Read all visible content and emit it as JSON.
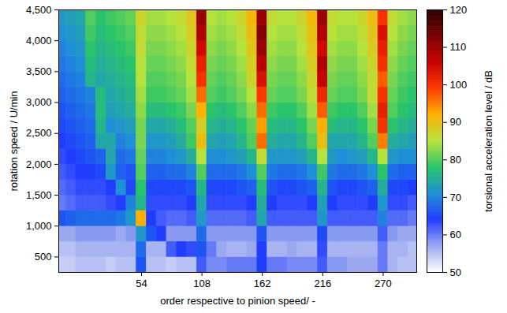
{
  "chart_data": {
    "type": "heatmap",
    "xlabel": "order respective to pinion speed/ -",
    "ylabel": "rotation speed / U/min",
    "xlim": [
      -20,
      300
    ],
    "ylim": [
      250,
      4500
    ],
    "xticks": [
      54,
      108,
      162,
      216,
      270
    ],
    "yticks": [
      500,
      1000,
      1500,
      2000,
      2500,
      3000,
      3500,
      4000,
      4500
    ],
    "x_bins": [
      -22.5,
      -13.5,
      -4.5,
      4.5,
      13.5,
      22.5,
      31.5,
      40.5,
      49.5,
      58.5,
      67.5,
      76.5,
      85.5,
      94.5,
      103.5,
      112.5,
      121.5,
      130.5,
      139.5,
      148.5,
      157.5,
      166.5,
      175.5,
      184.5,
      193.5,
      202.5,
      211.5,
      220.5,
      229.5,
      238.5,
      247.5,
      256.5,
      265.5,
      274.5,
      283.5,
      292.5,
      301.5
    ],
    "y_bins": [
      250,
      500,
      750,
      1000,
      1250,
      1500,
      1750,
      2000,
      2250,
      2500,
      2750,
      3000,
      3250,
      3500,
      3750,
      4000,
      4250,
      4500
    ],
    "values": [
      [
        54,
        54,
        55,
        55,
        55,
        54,
        55,
        55,
        66,
        55,
        55,
        54,
        55,
        55,
        62,
        59,
        59,
        60,
        60,
        60,
        64,
        60,
        60,
        59,
        59,
        59,
        62,
        58,
        58,
        57,
        57,
        57,
        60,
        56,
        55,
        55
      ],
      [
        55,
        55,
        56,
        56,
        56,
        56,
        56,
        56,
        68,
        56,
        56,
        62,
        64,
        63,
        66,
        60,
        57,
        56,
        56,
        57,
        64,
        56,
        56,
        57,
        56,
        56,
        63,
        56,
        56,
        56,
        56,
        56,
        60,
        56,
        56,
        55
      ],
      [
        57,
        57,
        58,
        58,
        58,
        58,
        57,
        58,
        72,
        66,
        64,
        58,
        58,
        58,
        68,
        58,
        58,
        58,
        58,
        58,
        66,
        58,
        58,
        58,
        58,
        58,
        65,
        58,
        58,
        58,
        58,
        58,
        62,
        58,
        57,
        57
      ],
      [
        66,
        67,
        68,
        68,
        68,
        68,
        69,
        72,
        92,
        64,
        62,
        61,
        61,
        62,
        72,
        61,
        61,
        61,
        61,
        62,
        74,
        62,
        62,
        62,
        62,
        62,
        72,
        62,
        62,
        62,
        62,
        62,
        70,
        61,
        61,
        60
      ],
      [
        60,
        61,
        62,
        62,
        62,
        63,
        64,
        70,
        76,
        63,
        63,
        63,
        63,
        64,
        74,
        63,
        63,
        63,
        63,
        64,
        75,
        64,
        63,
        63,
        63,
        64,
        73,
        64,
        63,
        63,
        63,
        64,
        72,
        63,
        63,
        62
      ],
      [
        61,
        62,
        63,
        63,
        63,
        64,
        71,
        65,
        78,
        65,
        65,
        65,
        65,
        66,
        76,
        65,
        65,
        65,
        66,
        67,
        77,
        66,
        65,
        65,
        66,
        67,
        76,
        66,
        65,
        65,
        66,
        67,
        75,
        65,
        65,
        64
      ],
      [
        62,
        63,
        64,
        64,
        65,
        72,
        67,
        66,
        80,
        67,
        67,
        68,
        68,
        70,
        80,
        68,
        68,
        68,
        69,
        71,
        80,
        69,
        68,
        68,
        69,
        71,
        79,
        69,
        68,
        68,
        69,
        71,
        78,
        68,
        67,
        67
      ],
      [
        63,
        64,
        65,
        66,
        67,
        74,
        68,
        69,
        81,
        70,
        70,
        71,
        72,
        75,
        85,
        71,
        71,
        72,
        73,
        76,
        86,
        72,
        72,
        72,
        73,
        76,
        85,
        72,
        71,
        72,
        73,
        76,
        85,
        72,
        71,
        71
      ],
      [
        64,
        65,
        66,
        67,
        74,
        74,
        70,
        71,
        82,
        72,
        72,
        73,
        75,
        79,
        90,
        74,
        73,
        74,
        76,
        80,
        96,
        75,
        74,
        74,
        76,
        80,
        90,
        74,
        74,
        74,
        76,
        80,
        95,
        75,
        74,
        73
      ],
      [
        65,
        66,
        67,
        68,
        76,
        71,
        72,
        73,
        82,
        74,
        74,
        75,
        77,
        80,
        88,
        76,
        75,
        76,
        78,
        81,
        93,
        77,
        76,
        76,
        78,
        82,
        92,
        77,
        76,
        76,
        78,
        82,
        100,
        78,
        76,
        75
      ],
      [
        66,
        67,
        68,
        69,
        77,
        73,
        74,
        75,
        83,
        77,
        77,
        78,
        79,
        82,
        92,
        78,
        77,
        78,
        80,
        83,
        96,
        79,
        78,
        78,
        80,
        84,
        97,
        79,
        78,
        78,
        80,
        84,
        102,
        80,
        78,
        77
      ],
      [
        67,
        68,
        69,
        70,
        77,
        74,
        75,
        76,
        84,
        79,
        79,
        80,
        81,
        84,
        96,
        80,
        79,
        80,
        82,
        85,
        99,
        81,
        80,
        80,
        82,
        86,
        101,
        81,
        80,
        80,
        82,
        86,
        100,
        81,
        79,
        78
      ],
      [
        68,
        69,
        70,
        76,
        74,
        75,
        76,
        77,
        85,
        80,
        80,
        81,
        82,
        85,
        100,
        81,
        80,
        81,
        83,
        87,
        104,
        82,
        81,
        81,
        83,
        87,
        106,
        82,
        81,
        81,
        83,
        86,
        97,
        82,
        80,
        79
      ],
      [
        69,
        70,
        71,
        77,
        75,
        76,
        77,
        78,
        85,
        81,
        81,
        82,
        83,
        86,
        102,
        82,
        81,
        82,
        84,
        88,
        107,
        83,
        82,
        82,
        84,
        88,
        108,
        83,
        82,
        82,
        84,
        87,
        100,
        83,
        81,
        80
      ],
      [
        70,
        71,
        72,
        78,
        76,
        77,
        78,
        79,
        86,
        82,
        82,
        83,
        84,
        87,
        105,
        83,
        82,
        83,
        85,
        89,
        110,
        84,
        83,
        83,
        85,
        89,
        105,
        84,
        83,
        83,
        85,
        88,
        102,
        84,
        82,
        81
      ],
      [
        71,
        72,
        73,
        79,
        77,
        78,
        79,
        80,
        86,
        83,
        83,
        84,
        85,
        88,
        108,
        84,
        83,
        84,
        86,
        90,
        112,
        85,
        84,
        84,
        86,
        90,
        108,
        85,
        84,
        84,
        86,
        89,
        104,
        85,
        83,
        82
      ],
      [
        72,
        73,
        74,
        80,
        78,
        79,
        80,
        81,
        87,
        84,
        84,
        85,
        86,
        89,
        110,
        85,
        84,
        85,
        87,
        91,
        110,
        86,
        85,
        85,
        87,
        91,
        110,
        86,
        85,
        85,
        87,
        90,
        100,
        86,
        84,
        83
      ]
    ],
    "colorbar": {
      "label": "torsional acceleration level / dB",
      "range": [
        50,
        120
      ],
      "ticks": [
        50,
        60,
        70,
        80,
        90,
        100,
        110,
        120
      ]
    }
  }
}
